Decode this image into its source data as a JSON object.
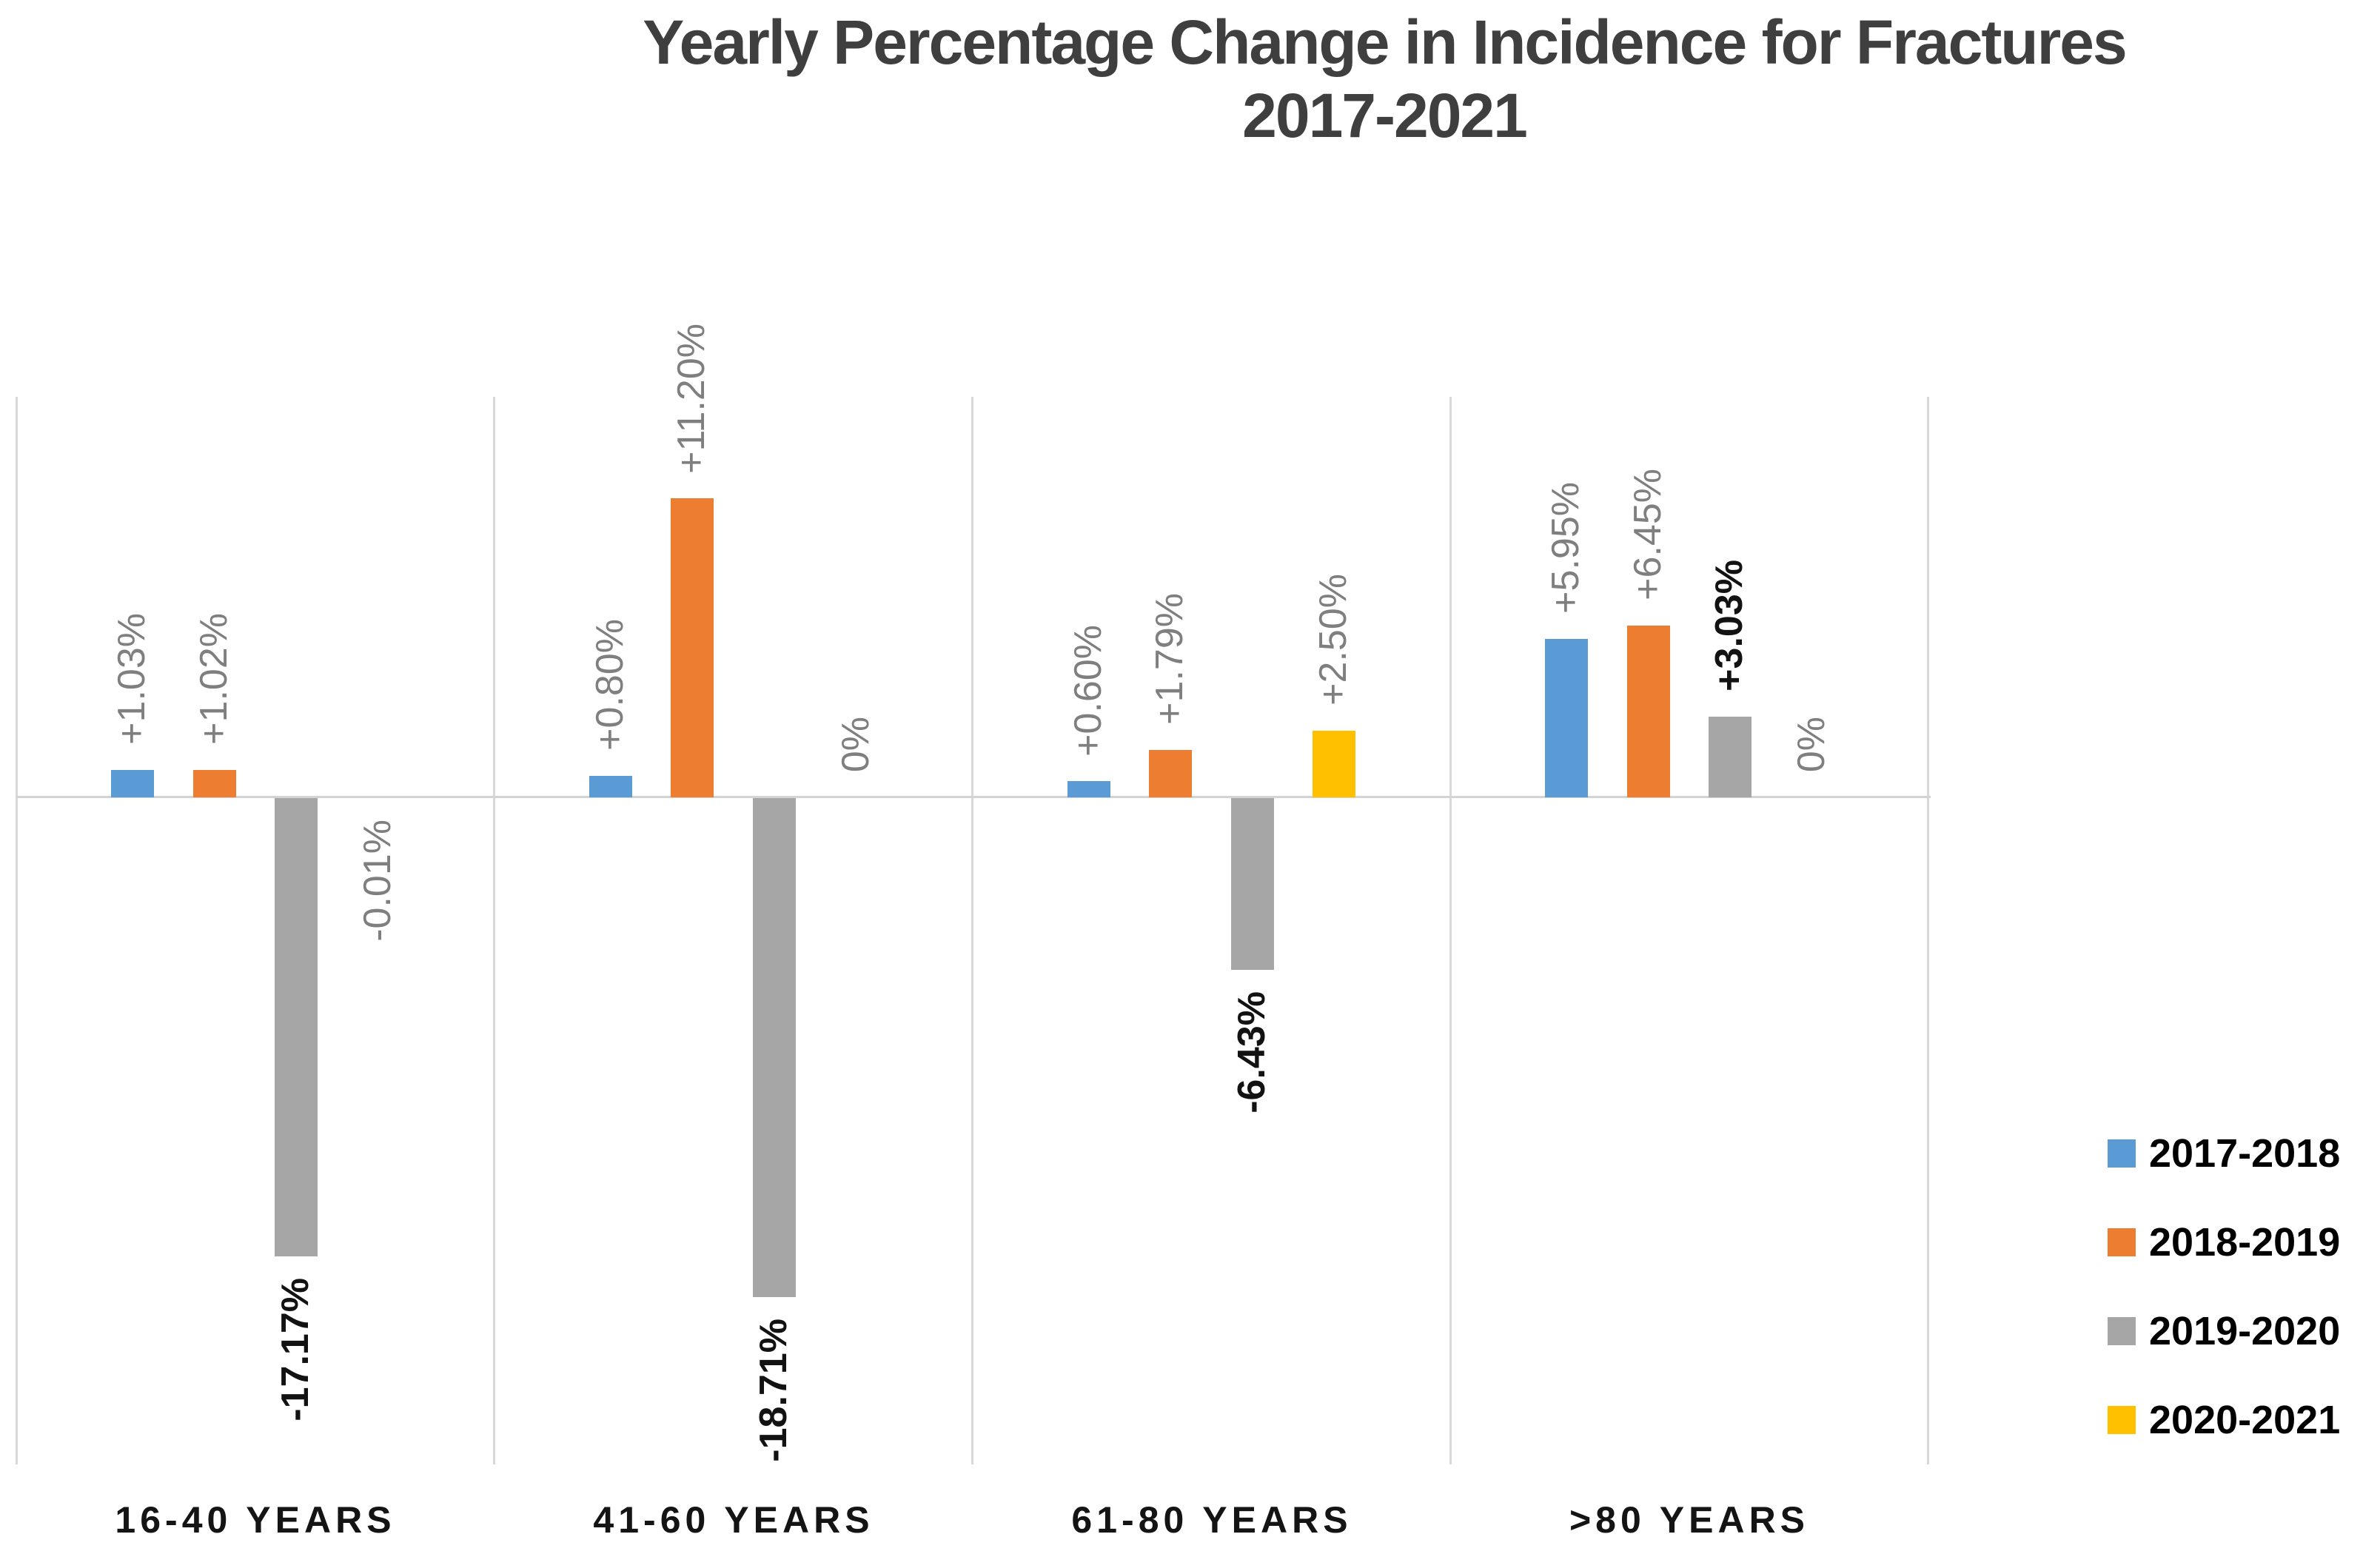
{
  "title": {
    "line1": "Yearly Percentage Change in Incidence for Fractures",
    "line2": "2017-2021"
  },
  "legend": {
    "position": "right",
    "items": [
      {
        "label": "2017-2018",
        "color": "#5B9BD5",
        "textured": false
      },
      {
        "label": "2018-2019",
        "color": "#ED7D31",
        "textured": false
      },
      {
        "label": "2019-2020",
        "color": "#A6A6A6",
        "textured": true
      },
      {
        "label": "2020-2021",
        "color": "#FFC000",
        "textured": false
      }
    ]
  },
  "chart_data": {
    "type": "bar",
    "title": "Yearly Percentage Change in Incidence for Fractures 2017-2021",
    "categories": [
      "16-40 YEARS",
      "41-60 YEARS",
      "61-80 YEARS",
      ">80 YEARS"
    ],
    "series": [
      {
        "name": "2017-2018",
        "color": "#5B9BD5",
        "textured": false,
        "label_style": "gray",
        "values": [
          1.03,
          0.8,
          0.6,
          5.95
        ],
        "labels": [
          "+1.03%",
          "+0.80%",
          "+0.60%",
          "+5.95%"
        ]
      },
      {
        "name": "2018-2019",
        "color": "#ED7D31",
        "textured": false,
        "label_style": "gray",
        "values": [
          1.02,
          11.2,
          1.79,
          6.45
        ],
        "labels": [
          "+1.02%",
          "+11.20%",
          "+1.79%",
          "+6.45%"
        ]
      },
      {
        "name": "2019-2020",
        "color": "#A6A6A6",
        "textured": true,
        "label_style": "black-bold",
        "values": [
          -17.17,
          -18.71,
          -6.43,
          3.03
        ],
        "labels": [
          "-17.17%",
          "-18.71%",
          "-6.43%",
          "+3.03%"
        ]
      },
      {
        "name": "2020-2021",
        "color": "#FFC000",
        "textured": false,
        "label_style": "gray",
        "values": [
          -0.01,
          0,
          2.5,
          0
        ],
        "labels": [
          "-0.01%",
          "0%",
          "+2.50%",
          "0%"
        ]
      }
    ],
    "xlabel": "",
    "ylabel": "",
    "ylim": [
      -25,
      15
    ],
    "grid": "vertical-category-separators-only",
    "value_axis_labels_visible": false,
    "data_label_rotation": -90,
    "label_color_gray": "#7f7f7f",
    "label_color_black": "#121212",
    "legend_position": "right"
  }
}
